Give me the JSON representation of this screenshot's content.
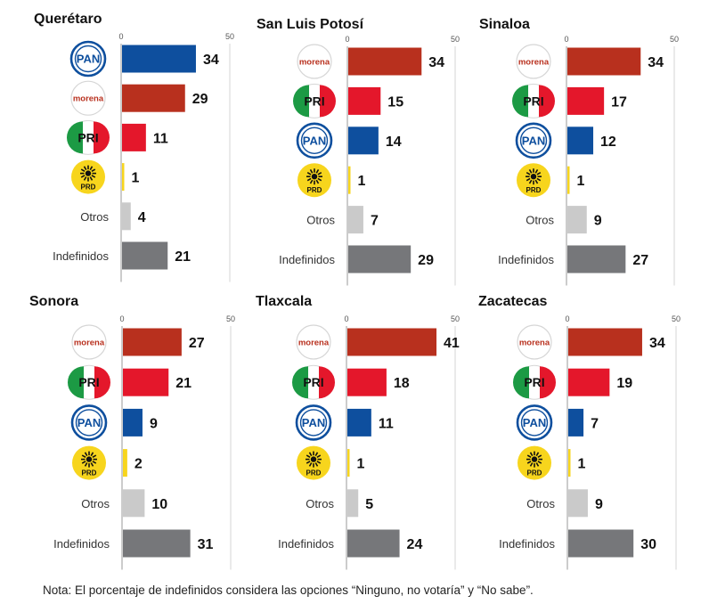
{
  "note": "Nota: El porcentaje de indefinidos considera las opciones “Ninguno, no votaría” y “No sabe”.",
  "colors": {
    "morena": "#B8301E",
    "pri": "#E4172B",
    "pan": "#0E4F9E",
    "prd": "#F7D51D",
    "otros": "#CACACA",
    "indefinidos": "#76777A"
  },
  "party_logos": {
    "pan": {
      "icon": "pan-logo-icon",
      "text": "PAN"
    },
    "morena": {
      "icon": "morena-logo-icon",
      "text": "morena"
    },
    "pri": {
      "icon": "pri-logo-icon",
      "text": "PRI"
    },
    "prd": {
      "icon": "prd-logo-icon",
      "text": "PRD"
    }
  },
  "chart_data": [
    {
      "type": "bar",
      "orientation": "horizontal",
      "title": "Querétaro",
      "xlim": [
        0,
        50
      ],
      "ticks": [
        "0",
        "50"
      ],
      "categories": [
        "PAN",
        "morena",
        "PRI",
        "PRD",
        "Otros",
        "Indefinidos"
      ],
      "keys": [
        "pan",
        "morena",
        "pri",
        "prd",
        "otros",
        "indefinidos"
      ],
      "values": [
        34,
        29,
        11,
        1,
        4,
        21
      ]
    },
    {
      "type": "bar",
      "orientation": "horizontal",
      "title": "San Luis Potosí",
      "xlim": [
        0,
        50
      ],
      "ticks": [
        "0",
        "50"
      ],
      "categories": [
        "morena",
        "PRI",
        "PAN",
        "PRD",
        "Otros",
        "Indefinidos"
      ],
      "keys": [
        "morena",
        "pri",
        "pan",
        "prd",
        "otros",
        "indefinidos"
      ],
      "values": [
        34,
        15,
        14,
        1,
        7,
        29
      ]
    },
    {
      "type": "bar",
      "orientation": "horizontal",
      "title": "Sinaloa",
      "xlim": [
        0,
        50
      ],
      "ticks": [
        "0",
        "50"
      ],
      "categories": [
        "morena",
        "PRI",
        "PAN",
        "PRD",
        "Otros",
        "Indefinidos"
      ],
      "keys": [
        "morena",
        "pri",
        "pan",
        "prd",
        "otros",
        "indefinidos"
      ],
      "values": [
        34,
        17,
        12,
        1,
        9,
        27
      ]
    },
    {
      "type": "bar",
      "orientation": "horizontal",
      "title": "Sonora",
      "xlim": [
        0,
        50
      ],
      "ticks": [
        "0",
        "50"
      ],
      "categories": [
        "morena",
        "PRI",
        "PAN",
        "PRD",
        "Otros",
        "Indefinidos"
      ],
      "keys": [
        "morena",
        "pri",
        "pan",
        "prd",
        "otros",
        "indefinidos"
      ],
      "values": [
        27,
        21,
        9,
        2,
        10,
        31
      ]
    },
    {
      "type": "bar",
      "orientation": "horizontal",
      "title": "Tlaxcala",
      "xlim": [
        0,
        50
      ],
      "ticks": [
        "0",
        "50"
      ],
      "categories": [
        "morena",
        "PRI",
        "PAN",
        "PRD",
        "Otros",
        "Indefinidos"
      ],
      "keys": [
        "morena",
        "pri",
        "pan",
        "prd",
        "otros",
        "indefinidos"
      ],
      "values": [
        41,
        18,
        11,
        1,
        5,
        24
      ]
    },
    {
      "type": "bar",
      "orientation": "horizontal",
      "title": "Zacatecas",
      "xlim": [
        0,
        50
      ],
      "ticks": [
        "0",
        "50"
      ],
      "categories": [
        "morena",
        "PRI",
        "PAN",
        "PRD",
        "Otros",
        "Indefinidos"
      ],
      "keys": [
        "morena",
        "pri",
        "pan",
        "prd",
        "otros",
        "indefinidos"
      ],
      "values": [
        34,
        19,
        7,
        1,
        9,
        30
      ]
    }
  ]
}
